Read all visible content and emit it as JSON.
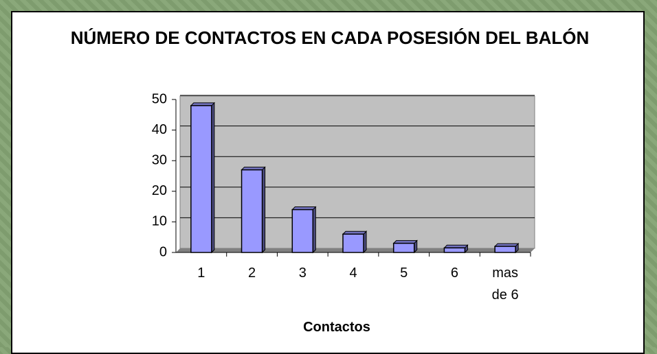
{
  "chart_data": {
    "type": "bar",
    "title": "NÚMERO DE CONTACTOS EN CADA POSESIÓN DEL BALÓN",
    "x_label": "Contactos",
    "categories": [
      "1",
      "2",
      "3",
      "4",
      "5",
      "6",
      "mas de 6"
    ],
    "values": [
      48,
      27,
      14,
      6,
      3,
      1.5,
      2
    ],
    "color": "#9999ff",
    "ylim": [
      0,
      50
    ],
    "yticks": [
      0,
      10,
      20,
      30,
      40,
      50
    ],
    "grid": true
  }
}
